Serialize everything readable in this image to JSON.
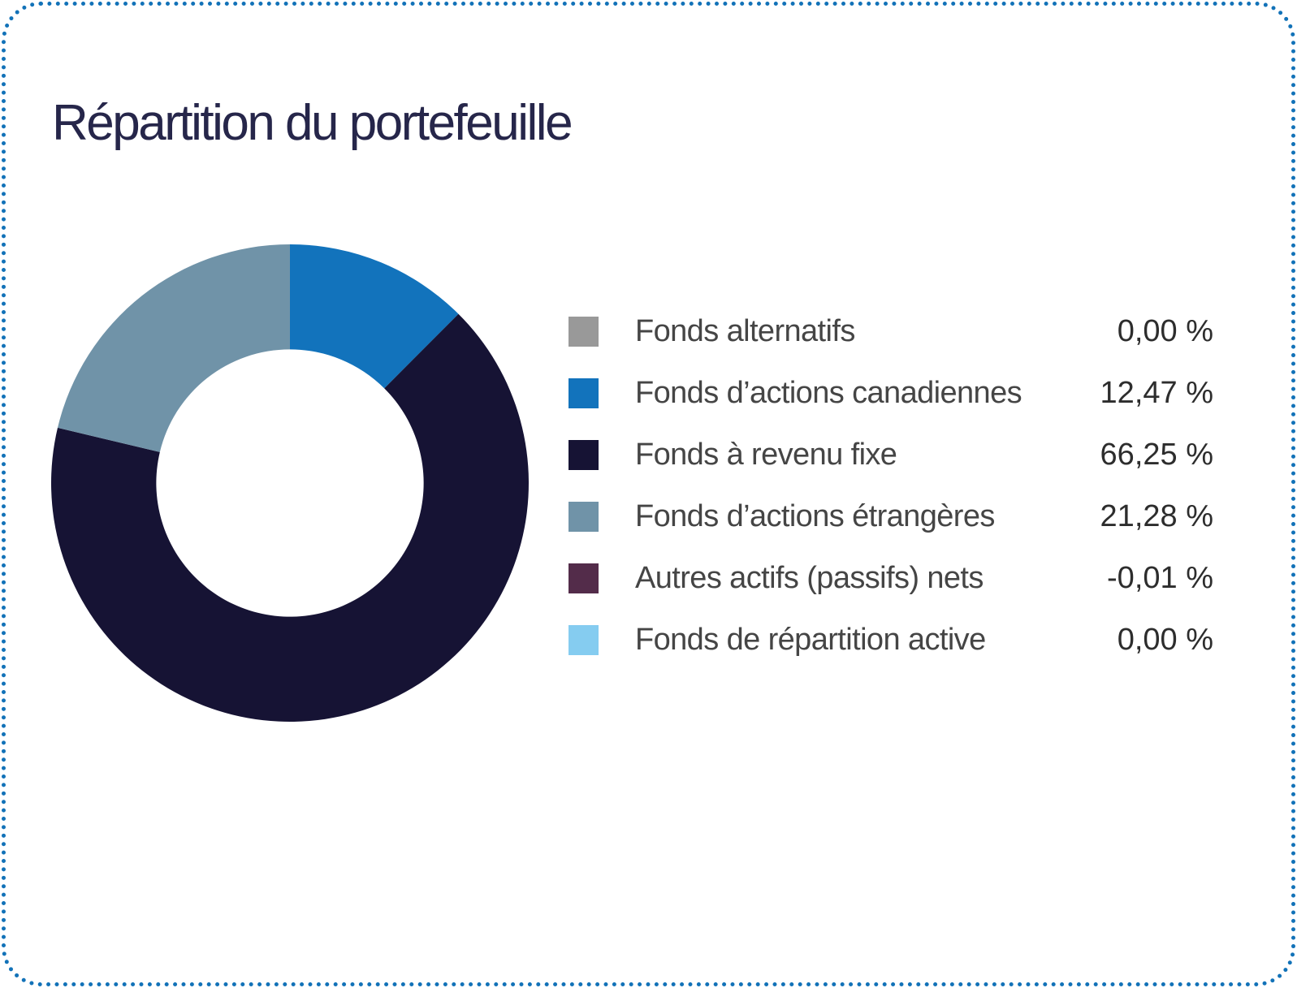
{
  "card": {
    "border_color": "#1272b8",
    "background_color": "#ffffff",
    "border_style": "dotted-rounded"
  },
  "chart_data": {
    "type": "pie",
    "variant": "donut",
    "title": "Répartition du portefeuille",
    "categories": [
      "Fonds alternatifs",
      "Fonds d’actions canadiennes",
      "Fonds à revenu fixe",
      "Fonds d’actions étrangères",
      "Autres actifs (passifs) nets",
      "Fonds de répartition active"
    ],
    "values": [
      0.0,
      12.47,
      66.25,
      21.28,
      -0.01,
      0.0
    ],
    "display_values": [
      "0,00 %",
      "12,47 %",
      "66,25 %",
      "21,28 %",
      "-0,01 %",
      "0,00 %"
    ],
    "colors": [
      "#999999",
      "#1273bc",
      "#161334",
      "#7093a8",
      "#532c4a",
      "#85ccf0"
    ],
    "unit": "%",
    "start_angle_deg": 0,
    "direction": "clockwise",
    "inner_radius_ratio": 0.56,
    "legend_position": "right"
  }
}
